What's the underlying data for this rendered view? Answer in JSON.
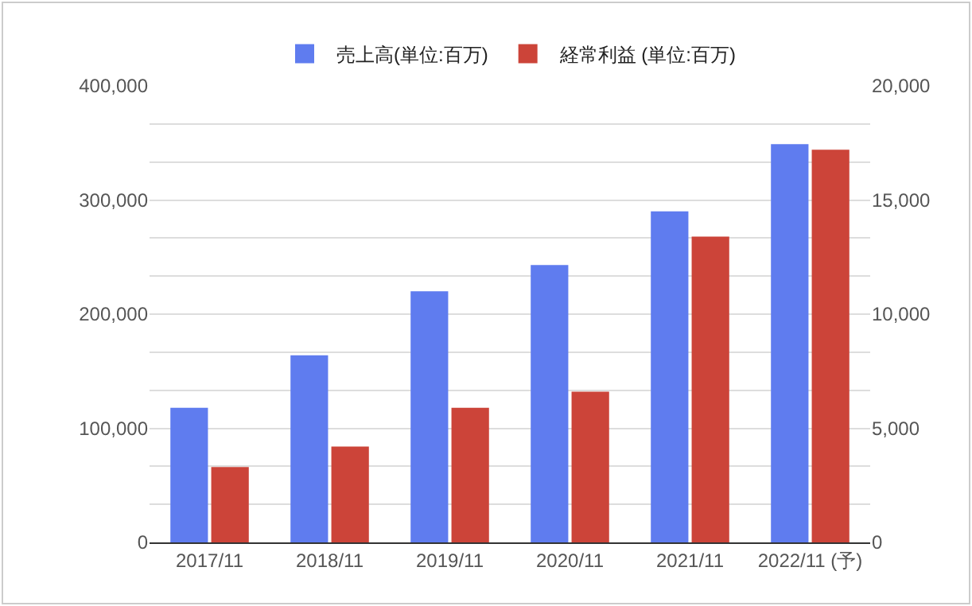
{
  "chart_data": {
    "type": "bar",
    "categories": [
      "2017/11",
      "2018/11",
      "2019/11",
      "2020/11",
      "2021/11",
      "2022/11 (予)"
    ],
    "series": [
      {
        "name": "売上高(単位:百万)",
        "color": "#5f7cef",
        "values": [
          118000,
          164000,
          220000,
          243000,
          290000,
          349000
        ]
      },
      {
        "name": "経常利益 (単位:百万)",
        "color": "#cc4439",
        "axis": "y2",
        "values": [
          3300,
          4200,
          5900,
          6600,
          13400,
          17200
        ]
      }
    ],
    "ylim": [
      0,
      400000
    ],
    "yticks": [
      0,
      {
        "value": 33333,
        "label": null
      },
      {
        "value": 66667,
        "label": null
      },
      {
        "value": 100000,
        "label": "100,000"
      },
      {
        "value": 133333,
        "label": null
      },
      {
        "value": 166667,
        "label": null
      },
      {
        "value": 200000,
        "label": "200,000"
      },
      {
        "value": 233333,
        "label": null
      },
      {
        "value": 266667,
        "label": null
      },
      {
        "value": 300000,
        "label": "300,000"
      },
      {
        "value": 333333,
        "label": null
      },
      {
        "value": 366667,
        "label": null
      },
      {
        "value": 400000,
        "label": "400,000"
      }
    ],
    "y2lim": [
      0,
      20000
    ],
    "y2ticks": [
      0,
      {
        "value": 5000,
        "label": "5,000"
      },
      {
        "value": 10000,
        "label": "10,000"
      },
      {
        "value": 15000,
        "label": "15,000"
      },
      {
        "value": 20000,
        "label": "20,000"
      }
    ],
    "grid": "y",
    "legend": "top"
  }
}
